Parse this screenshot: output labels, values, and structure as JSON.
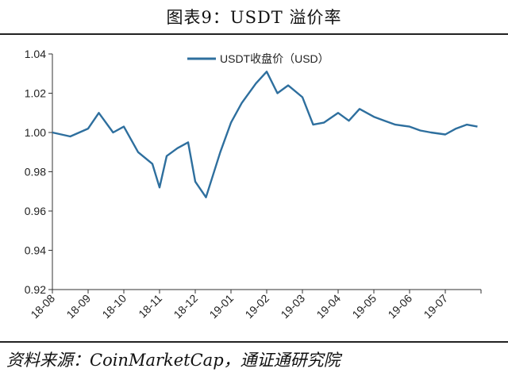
{
  "title": "图表9：USDT 溢价率",
  "source": "资料来源：CoinMarketCap，通证通研究院",
  "chart_data": {
    "type": "line",
    "ylim": [
      0.92,
      1.04
    ],
    "yticks": [
      "1.04",
      "1.02",
      "1.00",
      "0.98",
      "0.96",
      "0.94",
      "0.92"
    ],
    "xtick_labels": [
      "18-08",
      "18-09",
      "18-10",
      "18-11",
      "18-12",
      "19-01",
      "19-02",
      "19-03",
      "19-04",
      "19-05",
      "19-06",
      "19-07"
    ],
    "legend": "top-center",
    "grid": false,
    "series": [
      {
        "name": "USDT收盘价（USD）",
        "color": "#2e6f9e",
        "x": [
          0,
          0.5,
          1.0,
          1.3,
          1.7,
          2.0,
          2.4,
          2.8,
          3.0,
          3.2,
          3.5,
          3.8,
          4.0,
          4.3,
          4.7,
          5.0,
          5.3,
          5.7,
          6.0,
          6.3,
          6.6,
          7.0,
          7.3,
          7.6,
          8.0,
          8.3,
          8.6,
          9.0,
          9.3,
          9.6,
          10.0,
          10.3,
          10.6,
          11.0,
          11.3,
          11.6,
          11.9
        ],
        "values": [
          1.0,
          0.998,
          1.002,
          1.01,
          1.0,
          1.003,
          0.99,
          0.984,
          0.972,
          0.988,
          0.992,
          0.995,
          0.975,
          0.967,
          0.99,
          1.005,
          1.015,
          1.025,
          1.031,
          1.02,
          1.024,
          1.018,
          1.004,
          1.005,
          1.01,
          1.006,
          1.012,
          1.008,
          1.006,
          1.004,
          1.003,
          1.001,
          1.0,
          0.999,
          1.002,
          1.004,
          1.003
        ]
      }
    ]
  }
}
